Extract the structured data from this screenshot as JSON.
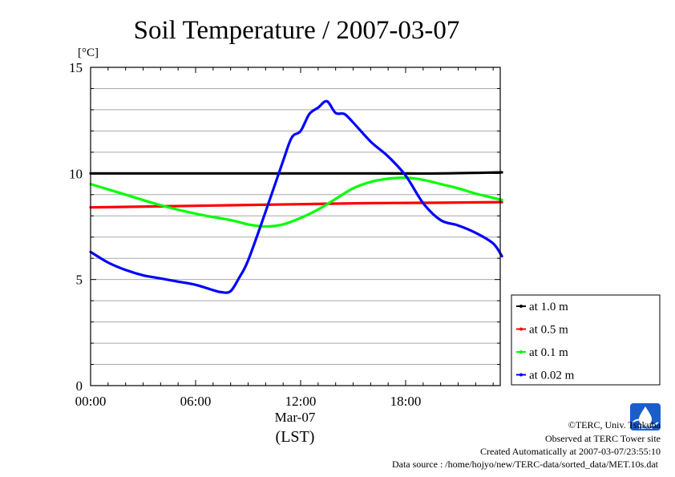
{
  "chart_data": {
    "type": "line",
    "title": "Soil Temperature / 2007-03-07",
    "yunit": "[°C]",
    "ylim": [
      0,
      15
    ],
    "yticks": [
      "0",
      "5",
      "10",
      "15"
    ],
    "xlim_hours": [
      0,
      23.5
    ],
    "xticks": [
      "00:00",
      "06:00",
      "12:00",
      "18:00"
    ],
    "xdate": "Mar-07",
    "xlabel": "(LST)",
    "grid": true,
    "legend_position": "right",
    "series": [
      {
        "name": "at 1.0 m",
        "color": "#000000",
        "x": [
          0,
          4,
          8,
          12,
          16,
          20,
          23.5
        ],
        "y": [
          10.0,
          10.0,
          10.0,
          10.0,
          10.0,
          10.0,
          10.05
        ]
      },
      {
        "name": "at 0.5 m",
        "color": "#ff0000",
        "x": [
          0,
          4,
          8,
          12,
          16,
          20,
          23.5
        ],
        "y": [
          8.4,
          8.45,
          8.5,
          8.55,
          8.6,
          8.62,
          8.65
        ]
      },
      {
        "name": "at 0.1 m",
        "color": "#00ff00",
        "x": [
          0,
          2,
          4,
          6,
          8,
          9,
          10,
          11,
          12,
          13,
          14,
          15,
          16,
          17,
          18,
          19,
          20,
          21,
          22,
          23,
          23.5
        ],
        "y": [
          9.5,
          9.0,
          8.5,
          8.1,
          7.8,
          7.6,
          7.5,
          7.6,
          7.9,
          8.3,
          8.8,
          9.3,
          9.6,
          9.75,
          9.8,
          9.7,
          9.5,
          9.3,
          9.05,
          8.85,
          8.75
        ]
      },
      {
        "name": "at 0.02 m",
        "color": "#0000ff",
        "x": [
          0,
          1,
          2,
          3,
          4,
          5,
          6,
          7,
          7.5,
          8,
          8.5,
          9,
          10,
          11,
          11.5,
          12,
          12.5,
          13,
          13.5,
          14,
          14.5,
          15,
          16,
          17,
          18,
          19,
          20,
          21,
          22,
          23,
          23.5
        ],
        "y": [
          6.3,
          5.8,
          5.45,
          5.2,
          5.05,
          4.9,
          4.75,
          4.5,
          4.4,
          4.45,
          5.1,
          5.9,
          8.2,
          10.6,
          11.7,
          12.0,
          12.8,
          13.1,
          13.4,
          12.85,
          12.8,
          12.4,
          11.5,
          10.8,
          9.9,
          8.6,
          7.8,
          7.55,
          7.2,
          6.7,
          6.1
        ]
      }
    ]
  },
  "credits": {
    "copyright": "©TERC, Univ. Tsukuba",
    "observed": "Observed at TERC Tower site",
    "created": "Created Automatically at 2007-03-07/23:55:10",
    "source": "Data source : /home/hojyo/new/TERC-data/sorted_data/MET.10s.dat",
    "logo_text": "TERC"
  }
}
